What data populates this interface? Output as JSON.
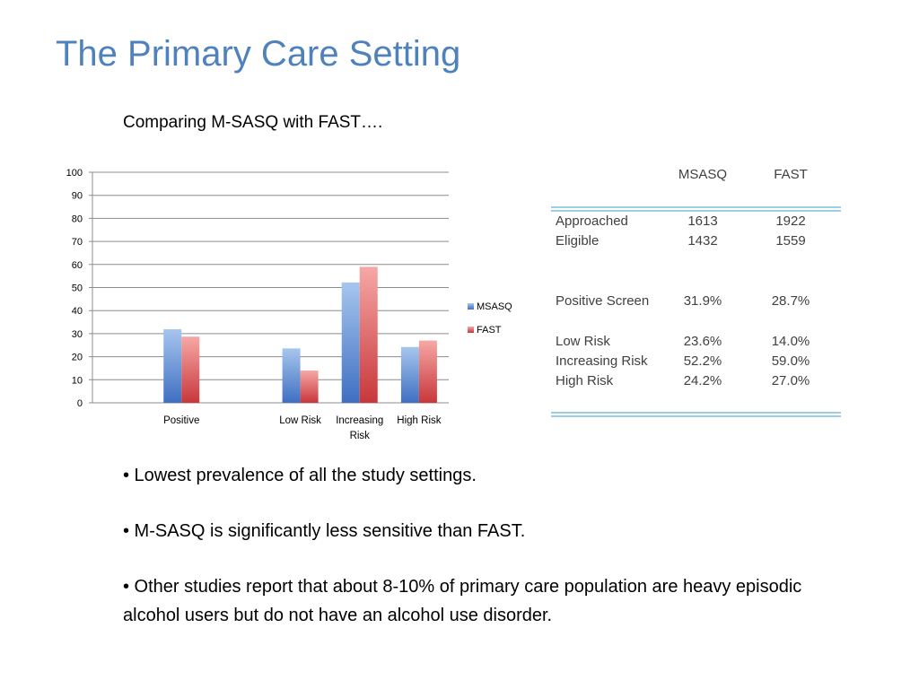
{
  "slide": {
    "title": "The Primary Care Setting",
    "subtitle": "Comparing M-SASQ with FAST…."
  },
  "chart_data": {
    "type": "bar",
    "categories": [
      "",
      "Positive",
      "",
      "Low Risk",
      "Increasing Risk",
      "High Risk"
    ],
    "series": [
      {
        "name": "MSASQ",
        "values": [
          null,
          31.9,
          null,
          23.6,
          52.2,
          24.2
        ],
        "color": "#4f81bd"
      },
      {
        "name": "FAST",
        "values": [
          null,
          28.7,
          null,
          14.0,
          59.0,
          27.0
        ],
        "color": "#e0575a"
      }
    ],
    "ylim": [
      0,
      100
    ],
    "yticks": [
      0,
      10,
      20,
      30,
      40,
      50,
      60,
      70,
      80,
      90,
      100
    ],
    "grid": true,
    "legend": "right",
    "title": "",
    "xlabel": "",
    "ylabel": ""
  },
  "table": {
    "headers": [
      "",
      "MSASQ",
      "FAST"
    ],
    "rows": [
      {
        "label": "Approached",
        "msasq": "1613",
        "fast": "1922"
      },
      {
        "label": "Eligible",
        "msasq": "1432",
        "fast": "1559"
      },
      {
        "label": "Positive Screen",
        "msasq": "31.9%",
        "fast": "28.7%"
      },
      {
        "label": "Low Risk",
        "msasq": "23.6%",
        "fast": "14.0%"
      },
      {
        "label": "Increasing Risk",
        "msasq": "52.2%",
        "fast": "59.0%"
      },
      {
        "label": "High Risk",
        "msasq": "24.2%",
        "fast": "27.0%"
      }
    ]
  },
  "bullets": [
    "• Lowest prevalence of all the study settings.",
    "• M-SASQ is significantly less sensitive than FAST.",
    "• Other studies report that about 8-10% of primary care population are heavy episodic alcohol users but do not have an alcohol use disorder."
  ]
}
